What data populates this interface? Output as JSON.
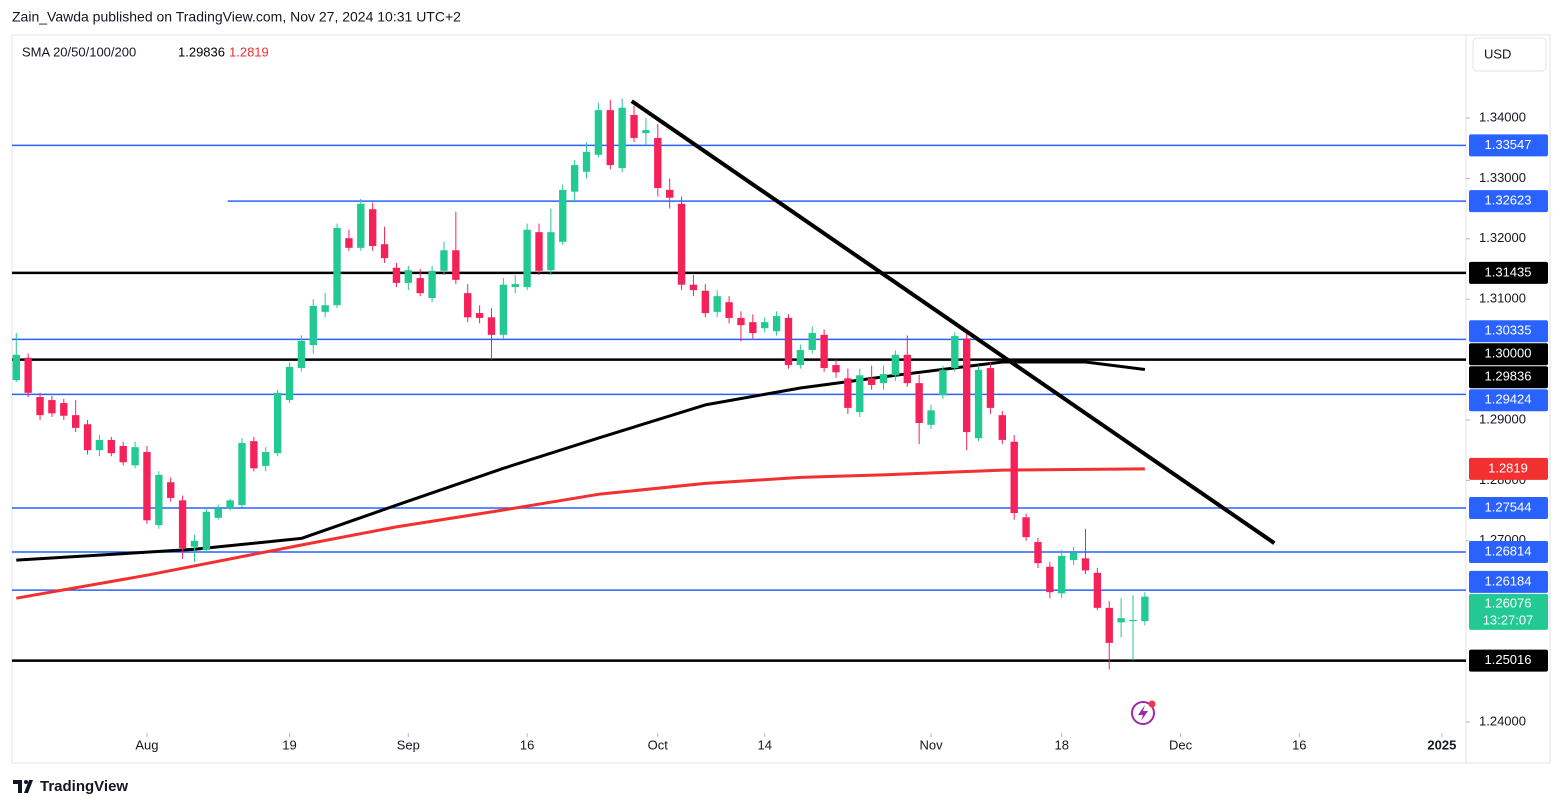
{
  "chart_data": {
    "type": "candlestick",
    "title": "Zain_Vawda published on TradingView.com, Nov 27, 2024 10:31 UTC+2",
    "legend_label": "SMA 20/50/100/200",
    "currency": "USD",
    "brand": "TradingView",
    "countdown": "13:27:07",
    "up_color": "#22c993",
    "down_color": "#f5225a",
    "xlim": [
      -0.36,
      122.03
    ],
    "ylim": [
      1.23818,
      1.35374
    ],
    "yticks": [
      {
        "value": 1.24,
        "label": "1.24000"
      },
      {
        "value": 1.27,
        "label": "1.27000"
      },
      {
        "value": 1.28,
        "label": "1.28000"
      },
      {
        "value": 1.29,
        "label": "1.29000"
      },
      {
        "value": 1.31,
        "label": "1.31000"
      },
      {
        "value": 1.32,
        "label": "1.32000"
      },
      {
        "value": 1.33,
        "label": "1.33000"
      },
      {
        "value": 1.34,
        "label": "1.34000"
      }
    ],
    "xticks": [
      {
        "value": 11,
        "label": "Aug"
      },
      {
        "value": 23,
        "label": "19"
      },
      {
        "value": 33,
        "label": "Sep"
      },
      {
        "value": 43,
        "label": "16"
      },
      {
        "value": 54,
        "label": "Oct"
      },
      {
        "value": 63,
        "label": "14"
      },
      {
        "value": 77,
        "label": "Nov"
      },
      {
        "value": 88,
        "label": "18"
      },
      {
        "value": 98,
        "label": "Dec"
      },
      {
        "value": 108,
        "label": "16"
      },
      {
        "value": 120,
        "label": "2025"
      }
    ],
    "ohlc": [
      [
        1.2966,
        1.3044,
        1.2963,
        1.3008
      ],
      [
        1.3003,
        1.301,
        1.2938,
        1.2945
      ],
      [
        1.2938,
        1.2945,
        1.29,
        1.2908
      ],
      [
        1.2933,
        1.294,
        1.2905,
        1.2911
      ],
      [
        1.2928,
        1.2935,
        1.29,
        1.2907
      ],
      [
        1.2908,
        1.2933,
        1.288,
        1.2887
      ],
      [
        1.2893,
        1.29,
        1.2843,
        1.285
      ],
      [
        1.285,
        1.2875,
        1.284,
        1.2867
      ],
      [
        1.2867,
        1.2872,
        1.284,
        1.2845
      ],
      [
        1.2857,
        1.2864,
        1.2825,
        1.283
      ],
      [
        1.2825,
        1.2864,
        1.282,
        1.2855
      ],
      [
        1.2847,
        1.2857,
        1.2728,
        1.2734
      ],
      [
        1.2726,
        1.2815,
        1.272,
        1.2809
      ],
      [
        1.2797,
        1.2805,
        1.2765,
        1.2771
      ],
      [
        1.2767,
        1.2775,
        1.267,
        1.2688
      ],
      [
        1.269,
        1.271,
        1.2665,
        1.27
      ],
      [
        1.2685,
        1.2755,
        1.268,
        1.2748
      ],
      [
        1.2738,
        1.276,
        1.2735,
        1.2754
      ],
      [
        1.2754,
        1.277,
        1.275,
        1.2767
      ],
      [
        1.2759,
        1.287,
        1.2755,
        1.2862
      ],
      [
        1.2865,
        1.2872,
        1.2815,
        1.282
      ],
      [
        1.2824,
        1.2855,
        1.2815,
        1.2847
      ],
      [
        1.2845,
        1.295,
        1.284,
        1.2945
      ],
      [
        1.2933,
        1.2995,
        1.2928,
        1.2988
      ],
      [
        1.2986,
        1.304,
        1.298,
        1.3031
      ],
      [
        1.3024,
        1.31,
        1.301,
        1.3089
      ],
      [
        1.3079,
        1.311,
        1.307,
        1.309
      ],
      [
        1.309,
        1.3225,
        1.3085,
        1.3218
      ],
      [
        1.3201,
        1.3215,
        1.318,
        1.3185
      ],
      [
        1.3185,
        1.3266,
        1.318,
        1.3258
      ],
      [
        1.3249,
        1.326,
        1.318,
        1.3188
      ],
      [
        1.3191,
        1.322,
        1.316,
        1.3168
      ],
      [
        1.3152,
        1.316,
        1.312,
        1.3127
      ],
      [
        1.3127,
        1.3155,
        1.3115,
        1.3148
      ],
      [
        1.3135,
        1.315,
        1.3105,
        1.311
      ],
      [
        1.3102,
        1.3155,
        1.3095,
        1.3147
      ],
      [
        1.3147,
        1.3195,
        1.314,
        1.3181
      ],
      [
        1.3181,
        1.3245,
        1.3125,
        1.3132
      ],
      [
        1.311,
        1.3125,
        1.3062,
        1.307
      ],
      [
        1.3077,
        1.309,
        1.306,
        1.3069
      ],
      [
        1.307,
        1.3085,
        1.3,
        1.3041
      ],
      [
        1.3041,
        1.3135,
        1.3035,
        1.3124
      ],
      [
        1.312,
        1.314,
        1.311,
        1.3125
      ],
      [
        1.312,
        1.3225,
        1.3115,
        1.3215
      ],
      [
        1.3211,
        1.3225,
        1.314,
        1.3147
      ],
      [
        1.3148,
        1.325,
        1.314,
        1.3211
      ],
      [
        1.3195,
        1.329,
        1.319,
        1.3281
      ],
      [
        1.3278,
        1.333,
        1.326,
        1.3322
      ],
      [
        1.3311,
        1.336,
        1.33,
        1.3344
      ],
      [
        1.3339,
        1.3425,
        1.3335,
        1.3413
      ],
      [
        1.3413,
        1.343,
        1.3315,
        1.3322
      ],
      [
        1.3317,
        1.3432,
        1.331,
        1.3417
      ],
      [
        1.3405,
        1.342,
        1.336,
        1.3367
      ],
      [
        1.3375,
        1.34,
        1.3355,
        1.338
      ],
      [
        1.3367,
        1.339,
        1.327,
        1.3284
      ],
      [
        1.3281,
        1.33,
        1.325,
        1.3268
      ],
      [
        1.3258,
        1.327,
        1.3115,
        1.3124
      ],
      [
        1.3124,
        1.314,
        1.3105,
        1.3115
      ],
      [
        1.3114,
        1.3125,
        1.307,
        1.3077
      ],
      [
        1.3079,
        1.3115,
        1.307,
        1.3105
      ],
      [
        1.3095,
        1.3105,
        1.306,
        1.3069
      ],
      [
        1.3069,
        1.308,
        1.303,
        1.3057
      ],
      [
        1.3062,
        1.3075,
        1.3035,
        1.3044
      ],
      [
        1.3052,
        1.307,
        1.3045,
        1.3062
      ],
      [
        1.3047,
        1.308,
        1.304,
        1.3072
      ],
      [
        1.3069,
        1.3075,
        1.2985,
        1.2991
      ],
      [
        1.2991,
        1.3025,
        1.2985,
        1.3016
      ],
      [
        1.3016,
        1.3055,
        1.301,
        1.3044
      ],
      [
        1.3041,
        1.305,
        1.298,
        1.2986
      ],
      [
        1.2991,
        1.3,
        1.297,
        1.2979
      ],
      [
        1.2969,
        1.2985,
        1.291,
        1.292
      ],
      [
        1.2913,
        1.2985,
        1.2905,
        1.2974
      ],
      [
        1.2969,
        1.299,
        1.295,
        1.2958
      ],
      [
        1.2961,
        1.299,
        1.295,
        1.2976
      ],
      [
        1.2974,
        1.3015,
        1.2965,
        1.3008
      ],
      [
        1.3008,
        1.304,
        1.2955,
        1.2961
      ],
      [
        1.2961,
        1.2975,
        1.286,
        1.2895
      ],
      [
        1.2892,
        1.2925,
        1.2885,
        1.2916
      ],
      [
        1.2941,
        1.299,
        1.2935,
        1.2983
      ],
      [
        1.2986,
        1.3045,
        1.298,
        1.3039
      ],
      [
        1.3035,
        1.3045,
        1.285,
        1.288
      ],
      [
        1.287,
        1.299,
        1.2865,
        1.2983
      ],
      [
        1.2986,
        1.2995,
        1.291,
        1.292
      ],
      [
        1.2908,
        1.2915,
        1.286,
        1.2867
      ],
      [
        1.2864,
        1.2875,
        1.2735,
        1.2746
      ],
      [
        1.2739,
        1.2745,
        1.27,
        1.2706
      ],
      [
        1.2698,
        1.2705,
        1.2655,
        1.2663
      ],
      [
        1.2657,
        1.2665,
        1.2605,
        1.2615
      ],
      [
        1.2613,
        1.2685,
        1.2605,
        1.2675
      ],
      [
        1.2668,
        1.269,
        1.266,
        1.2681
      ],
      [
        1.2671,
        1.272,
        1.2645,
        1.2651
      ],
      [
        1.2647,
        1.2655,
        1.2585,
        1.2589
      ],
      [
        1.2589,
        1.26,
        1.2487,
        1.2531
      ],
      [
        1.2565,
        1.2605,
        1.254,
        1.2572
      ],
      [
        1.2567,
        1.261,
        1.2502,
        1.2569
      ],
      [
        1.2567,
        1.2615,
        1.256,
        1.26076
      ]
    ],
    "sma": [
      {
        "color": "#000000",
        "x": [
          0,
          15,
          24,
          32,
          41,
          49,
          58,
          66,
          74,
          83,
          90,
          95
        ],
        "values": [
          1.2668,
          1.2686,
          1.2704,
          1.2759,
          1.282,
          1.287,
          1.2925,
          1.2953,
          1.2974,
          1.2996,
          1.2996,
          1.29836
        ]
      },
      {
        "color": "#f23030",
        "x": [
          0,
          11,
          24,
          32,
          41,
          49,
          58,
          66,
          74,
          83,
          95
        ],
        "values": [
          1.2605,
          1.2643,
          1.2693,
          1.2723,
          1.2751,
          1.2777,
          1.2795,
          1.2805,
          1.281,
          1.2817,
          1.2819
        ]
      }
    ],
    "trendline": {
      "x": [
        51.8,
        105.9
      ],
      "values": [
        1.3428,
        1.2696
      ],
      "color": "#000000"
    },
    "levels": [
      {
        "price": 1.33547,
        "color": "#2962ff"
      },
      {
        "price": 1.32623,
        "color": "#2962ff",
        "start": 17.8
      },
      {
        "price": 1.31435,
        "color": "#000000"
      },
      {
        "price": 1.30335,
        "color": "#2962ff"
      },
      {
        "price": {
          "value": 1.3,
          "label": "1.30000"
        },
        "color": "#000000"
      },
      {
        "price": 1.29424,
        "color": "#2962ff"
      },
      {
        "price": 1.27544,
        "color": "#2962ff"
      },
      {
        "price": 1.26814,
        "color": "#2962ff"
      },
      {
        "price": 1.26184,
        "color": "#2962ff"
      },
      {
        "price": 1.25016,
        "color": "#000000"
      }
    ]
  }
}
